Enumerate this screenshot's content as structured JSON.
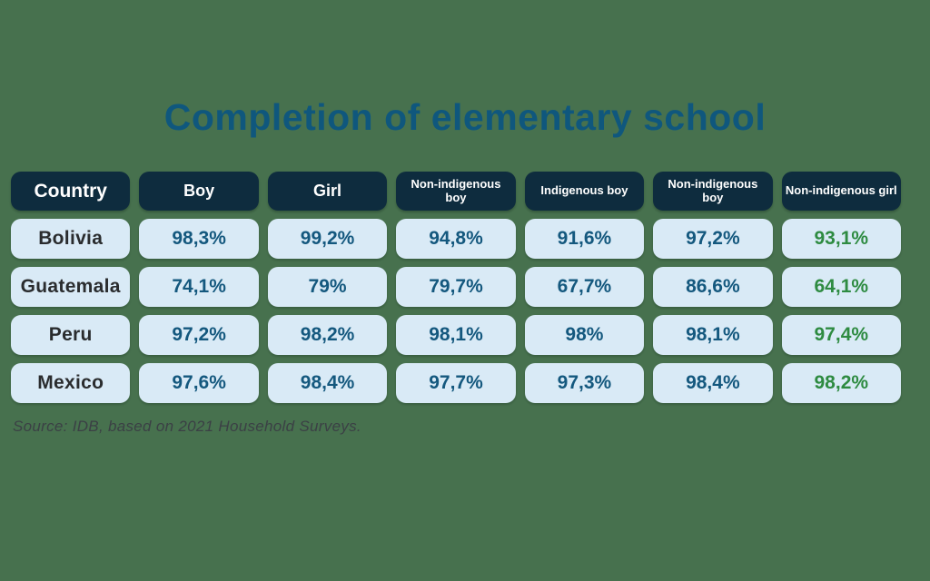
{
  "chart_data": {
    "type": "table",
    "title": "Completion of elementary school",
    "source": "Source: IDB, based on 2021 Household Surveys.",
    "columns": [
      "Country",
      "Boy",
      "Girl",
      "Non-indigenous boy",
      "Indigenous boy",
      "Non-indigenous boy",
      "Non-indigenous girl"
    ],
    "rows": [
      {
        "country": "Bolivia",
        "values": [
          "98,3%",
          "99,2%",
          "94,8%",
          "91,6%",
          "97,2%",
          "93,1%"
        ]
      },
      {
        "country": "Guatemala",
        "values": [
          "74,1%",
          "79%",
          "79,7%",
          "67,7%",
          "86,6%",
          "64,1%"
        ]
      },
      {
        "country": "Peru",
        "values": [
          "97,2%",
          "98,2%",
          "98,1%",
          "98%",
          "98,1%",
          "97,4%"
        ]
      },
      {
        "country": "Mexico",
        "values": [
          "97,6%",
          "98,4%",
          "97,7%",
          "97,3%",
          "98,4%",
          "98,2%"
        ]
      }
    ],
    "legend_position": "none",
    "grid": false
  },
  "colors": {
    "background": "#47714e",
    "title": "#0f577d",
    "header_bg": "#0e2c3e",
    "header_text": "#ffffff",
    "cell_bg": "#d9eaf6",
    "country_text": "#2a2c2e",
    "value_blue": "#14587e",
    "value_green": "#2e8b41",
    "source_text": "#3b4045"
  }
}
